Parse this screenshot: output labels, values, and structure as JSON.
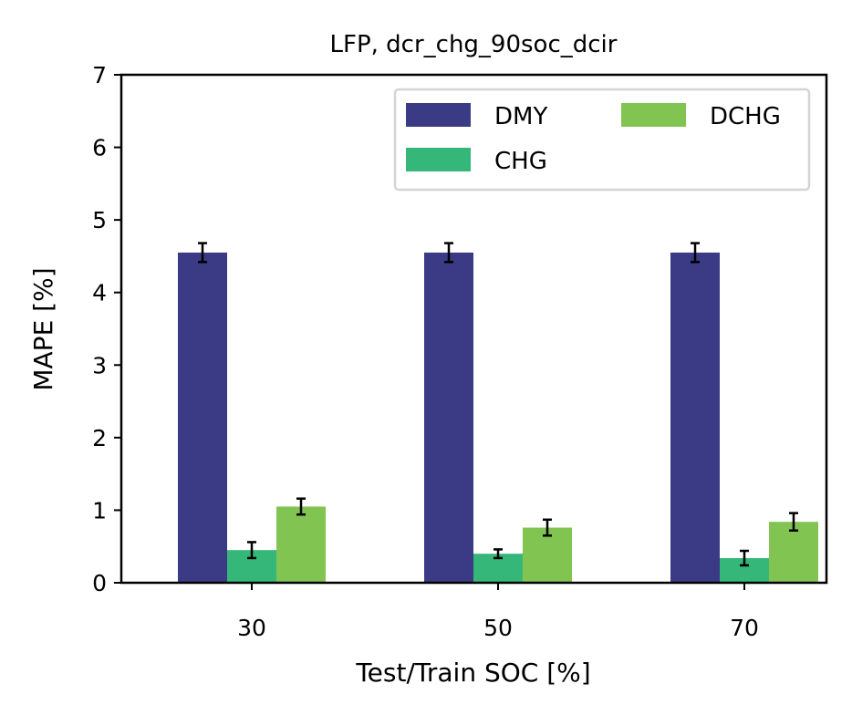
{
  "chart_data": {
    "type": "bar",
    "title": "LFP, dcr_chg_90soc_dcir",
    "xlabel": "Test/Train SOC [%]",
    "ylabel": "MAPE [%]",
    "ylim": [
      0,
      7
    ],
    "yticks": [
      "0",
      "1",
      "2",
      "3",
      "4",
      "5",
      "6",
      "7"
    ],
    "categories": [
      "30",
      "50",
      "70"
    ],
    "series": [
      {
        "name": "DMY",
        "color": "#3b3a85",
        "values": [
          4.55,
          4.55,
          4.55
        ],
        "errors": [
          0.13,
          0.13,
          0.13
        ]
      },
      {
        "name": "CHG",
        "color": "#35b779",
        "values": [
          0.45,
          0.4,
          0.34
        ],
        "errors": [
          0.11,
          0.06,
          0.1
        ]
      },
      {
        "name": "DCHG",
        "color": "#82c452",
        "values": [
          1.05,
          0.76,
          0.84
        ],
        "errors": [
          0.11,
          0.11,
          0.12
        ]
      }
    ],
    "legend": {
      "position": "top-right",
      "columns": 2
    },
    "grid": false
  }
}
